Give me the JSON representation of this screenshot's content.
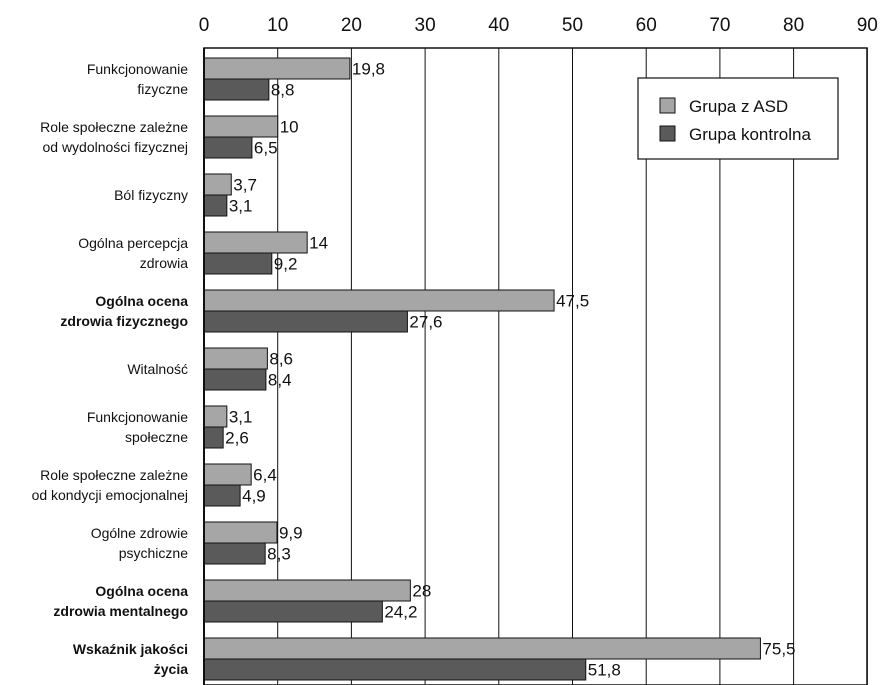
{
  "chart_data": {
    "type": "bar",
    "orientation": "horizontal",
    "xlim": [
      0,
      90
    ],
    "x_ticks": [
      0,
      10,
      20,
      30,
      40,
      50,
      60,
      70,
      80,
      90
    ],
    "grid": true,
    "legend_position": "top-right",
    "categories": [
      {
        "lines": [
          "Funkcjonowanie",
          "fizyczne"
        ],
        "bold": false
      },
      {
        "lines": [
          "Role społeczne zależne",
          "od wydolności fizycznej"
        ],
        "bold": false
      },
      {
        "lines": [
          "Ból fizyczny"
        ],
        "bold": false
      },
      {
        "lines": [
          "Ogólna percepcja",
          "zdrowia"
        ],
        "bold": false
      },
      {
        "lines": [
          "Ogólna ocena",
          "zdrowia fizycznego"
        ],
        "bold": true
      },
      {
        "lines": [
          "Witalność"
        ],
        "bold": false
      },
      {
        "lines": [
          "Funkcjonowanie",
          "społeczne"
        ],
        "bold": false
      },
      {
        "lines": [
          "Role społeczne zależne",
          "od kondycji emocjonalnej"
        ],
        "bold": false
      },
      {
        "lines": [
          "Ogólne zdrowie",
          "psychiczne"
        ],
        "bold": false
      },
      {
        "lines": [
          "Ogólna ocena",
          "zdrowia mentalnego"
        ],
        "bold": true
      },
      {
        "lines": [
          "Wskaźnik jakości",
          "życia"
        ],
        "bold": true
      }
    ],
    "series": [
      {
        "name": "Grupa z ASD",
        "color": "#a6a6a6",
        "values": [
          19.8,
          10,
          3.7,
          14,
          47.5,
          8.6,
          3.1,
          6.4,
          9.9,
          28,
          75.5
        ],
        "labels": [
          "19,8",
          "10",
          "3,7",
          "14",
          "47,5",
          "8,6",
          "3,1",
          "6,4",
          "9,9",
          "28",
          "75,5"
        ]
      },
      {
        "name": "Grupa kontrolna",
        "color": "#5a5a5a",
        "values": [
          8.8,
          6.5,
          3.1,
          9.2,
          27.6,
          8.4,
          2.6,
          4.9,
          8.3,
          24.2,
          51.8
        ],
        "labels": [
          "8,8",
          "6,5",
          "3,1",
          "9,2",
          "27,6",
          "8,4",
          "2,6",
          "4,9",
          "8,3",
          "24,2",
          "51,8"
        ]
      }
    ]
  }
}
